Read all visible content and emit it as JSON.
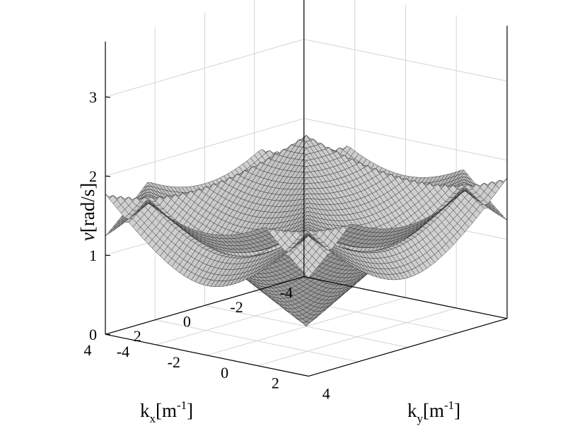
{
  "chart_data": {
    "type": "surface",
    "title": "",
    "xlabel": {
      "main": "k",
      "sub": "x",
      "unit_open": "[m",
      "unit_sup": "-1",
      "unit_close": "]"
    },
    "ylabel": {
      "main": "k",
      "sub": "y",
      "unit_open": "[m",
      "unit_sup": "-1",
      "unit_close": "]"
    },
    "zlabel": {
      "symbol": "ν",
      "unit": "[rad/s]"
    },
    "x_ticks": [
      "-4",
      "-2",
      "0",
      "2",
      "4"
    ],
    "y_ticks": [
      "-4",
      "-2",
      "0",
      "2",
      "4"
    ],
    "z_ticks": [
      "0",
      "1",
      "2",
      "3"
    ],
    "xlim": [
      -4,
      4
    ],
    "ylim": [
      -4,
      4
    ],
    "zlim": [
      0,
      3.7
    ],
    "grid": true,
    "surface_style": "gray mesh",
    "series": [
      {
        "band": 1,
        "value_at_origin": 0,
        "value_at_corner": 1.8,
        "value_at_edge_mid": 2.25
      },
      {
        "band": 2,
        "value_at_origin": 3.0,
        "value_at_corner": 3.0,
        "value_at_edge_mid": 3.4
      }
    ],
    "contour_on_floor": {
      "level": 2.9,
      "shape": "ring around origin with arcs near corners"
    }
  }
}
